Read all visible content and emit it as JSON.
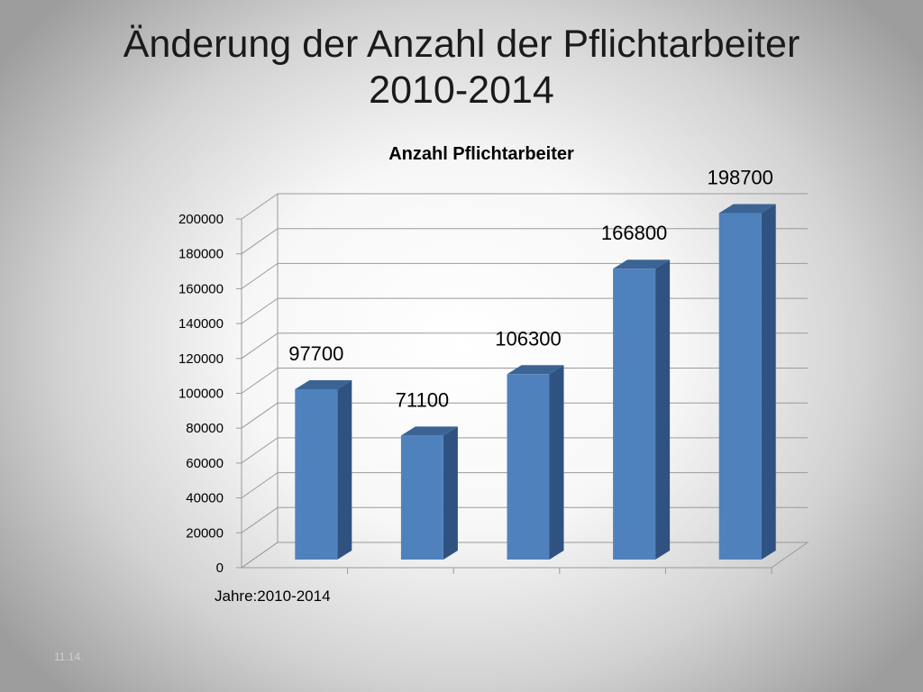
{
  "slide": {
    "title_line1": "Änderung der Anzahl der Pflichtarbeiter",
    "title_line2": "2010-2014",
    "footer_date": "11.14."
  },
  "colors": {
    "bar_front": "#4f81bd",
    "bar_side": "#2f5281",
    "bar_top": "#3b6494",
    "grid": "#9a9a9a"
  },
  "chart_data": {
    "type": "bar",
    "title": "Anzahl Pflichtarbeiter",
    "xlabel": "Jahre:2010-2014",
    "ylabel": "",
    "ylim": [
      0,
      200000
    ],
    "ytick_step": 20000,
    "yticks": [
      "0",
      "20000",
      "40000",
      "60000",
      "80000",
      "100000",
      "120000",
      "140000",
      "160000",
      "180000",
      "200000"
    ],
    "categories": [
      "",
      "",
      "",
      "",
      ""
    ],
    "values": [
      97700,
      71100,
      106300,
      166800,
      198700
    ],
    "data_labels": [
      "97700",
      "71100",
      "106300",
      "166800",
      "198700"
    ],
    "grid": true,
    "legend": "none",
    "style": "3d-column"
  }
}
